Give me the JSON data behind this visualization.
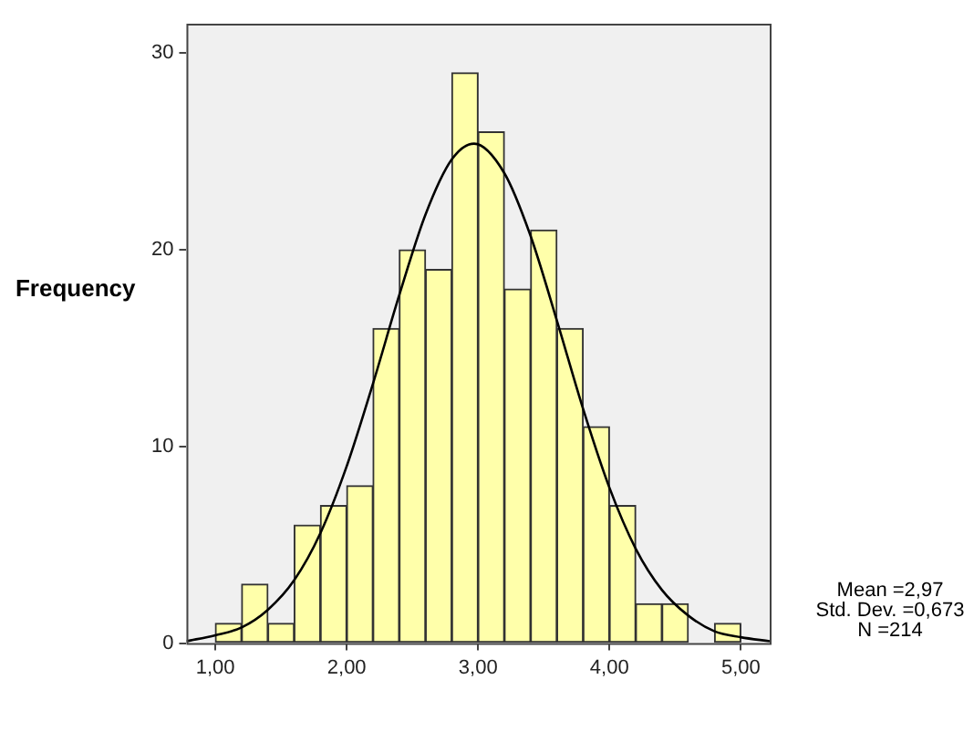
{
  "chart_data": {
    "type": "histogram",
    "ylabel": "Frequency",
    "bins": [
      1.0,
      1.2,
      1.4,
      1.6,
      1.8,
      2.0,
      2.2,
      2.4,
      2.6,
      2.8,
      3.0,
      3.2,
      3.4,
      3.6,
      3.8,
      4.0,
      4.2,
      4.4,
      4.6,
      4.8,
      5.0
    ],
    "series": [
      {
        "type": "histogram",
        "color": "#ffffaa",
        "values": [
          1,
          3,
          1,
          6,
          7,
          8,
          16,
          20,
          19,
          29,
          26,
          18,
          21,
          16,
          11,
          7,
          2,
          2,
          0,
          1
        ]
      },
      {
        "type": "line",
        "color": "#000000",
        "x": [
          0.78,
          1.0,
          1.2,
          1.4,
          1.6,
          1.8,
          2.0,
          2.2,
          2.4,
          2.6,
          2.8,
          2.97,
          3.2,
          3.4,
          3.6,
          3.8,
          4.0,
          4.2,
          4.4,
          4.6,
          4.8,
          5.0,
          5.22
        ],
        "values": [
          0.1,
          0.4,
          0.8,
          1.7,
          3.2,
          5.6,
          9.0,
          13.2,
          17.7,
          21.8,
          24.6,
          25.4,
          23.9,
          20.7,
          16.4,
          11.9,
          7.9,
          4.8,
          2.7,
          1.4,
          0.6,
          0.3,
          0.1
        ]
      }
    ],
    "xlim": [
      0.78,
      5.22
    ],
    "ylim": [
      0,
      31.5
    ],
    "xticks": [
      {
        "value": 1,
        "label": "1,00"
      },
      {
        "value": 2,
        "label": "2,00"
      },
      {
        "value": 3,
        "label": "3,00"
      },
      {
        "value": 4,
        "label": "4,00"
      },
      {
        "value": 5,
        "label": "5,00"
      }
    ],
    "yticks": [
      0,
      10,
      20,
      30
    ],
    "grid": false,
    "legend": false,
    "marker": "none",
    "annotations": [
      "Mean =2,97",
      "Std. Dev. =0,673",
      "N =214"
    ]
  }
}
